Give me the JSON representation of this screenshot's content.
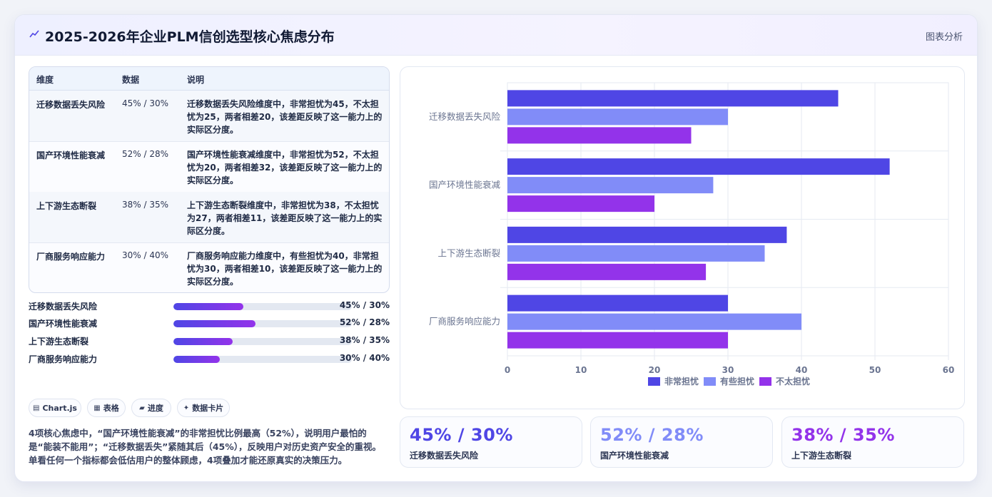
{
  "header": {
    "title": "2025-2026年企业PLM信创选型核心焦虑分布",
    "analysis_label": "图表分析"
  },
  "table": {
    "headers": [
      "维度",
      "数据",
      "说明"
    ],
    "rows": [
      {
        "dimension": "迁移数据丢失风险",
        "data": "45% / 30%",
        "note": "迁移数据丢失风险维度中，非常担忧为45，不太担忧为25，两者相差20，该差距反映了这一能力上的实际区分度。"
      },
      {
        "dimension": "国产环境性能衰减",
        "data": "52% / 28%",
        "note": "国产环境性能衰减维度中，非常担忧为52，不太担忧为20，两者相差32，该差距反映了这一能力上的实际区分度。"
      },
      {
        "dimension": "上下游生态断裂",
        "data": "38% / 35%",
        "note": "上下游生态断裂维度中，非常担忧为38，不太担忧为27，两者相差11，该差距反映了这一能力上的实际区分度。"
      },
      {
        "dimension": "厂商服务响应能力",
        "data": "30% / 40%",
        "note": "厂商服务响应能力维度中，有些担忧为40，非常担忧为30，两者相差10，该差距反映了这一能力上的实际区分度。"
      }
    ]
  },
  "progress": [
    {
      "label": "迁移数据丢失风险",
      "value": "45% / 30%",
      "fraction": 0.39
    },
    {
      "label": "国产环境性能衰减",
      "value": "52% / 28%",
      "fraction": 0.46
    },
    {
      "label": "上下游生态断裂",
      "value": "38% / 35%",
      "fraction": 0.33
    },
    {
      "label": "厂商服务响应能力",
      "value": "30% / 40%",
      "fraction": 0.26
    }
  ],
  "chips": [
    {
      "icon": "chart-icon",
      "glyph": "▤",
      "label": "Chart.js"
    },
    {
      "icon": "table-icon",
      "glyph": "▦",
      "label": "表格"
    },
    {
      "icon": "progress-icon",
      "glyph": "▰",
      "label": "进度"
    },
    {
      "icon": "card-icon",
      "glyph": "✦",
      "label": "数据卡片"
    }
  ],
  "summary": "4项核心焦虑中，“国产环境性能衰减”的非常担忧比例最高（52%），说明用户最怕的是“能装不能用”；“迁移数据丢失”紧随其后（45%），反映用户对历史资产安全的重视。单看任何一个指标都会低估用户的整体顾虑，4项叠加才能还原真实的决策压力。",
  "stats": [
    {
      "value": "45% / 30%",
      "label": "迁移数据丢失风险",
      "color": "#4f46e5"
    },
    {
      "value": "52% / 28%",
      "label": "国产环境性能衰减",
      "color": "#818cf8"
    },
    {
      "value": "38% / 35%",
      "label": "上下游生态断裂",
      "color": "#9333ea"
    }
  ],
  "chart_data": {
    "type": "bar",
    "orientation": "horizontal",
    "categories": [
      "迁移数据丢失风险",
      "国产环境性能衰减",
      "上下游生态断裂",
      "厂商服务响应能力"
    ],
    "series": [
      {
        "name": "非常担忧",
        "color": "#4f46e5",
        "values": [
          45,
          52,
          38,
          30
        ]
      },
      {
        "name": "有些担忧",
        "color": "#818cf8",
        "values": [
          30,
          28,
          35,
          40
        ]
      },
      {
        "name": "不太担忧",
        "color": "#9333ea",
        "values": [
          25,
          20,
          27,
          30
        ]
      }
    ],
    "xlim": [
      0,
      60
    ],
    "xticks": [
      0,
      10,
      20,
      30,
      40,
      50,
      60
    ],
    "grid": true,
    "legend": "bottom"
  }
}
